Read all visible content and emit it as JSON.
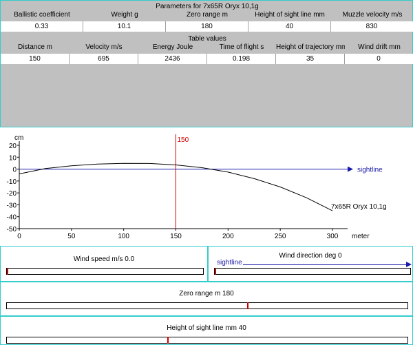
{
  "parameters": {
    "title": "Parameters for 7x65R Oryx 10,1g",
    "headers": [
      "Ballistic coefficient",
      "Weight g",
      "Zero range m",
      "Height of sight line mm",
      "Muzzle velocity m/s"
    ],
    "values": [
      "0.33",
      "10.1",
      "180",
      "40",
      "830"
    ]
  },
  "table": {
    "title": "Table values",
    "headers": [
      "Distance m",
      "Velocity m/s",
      "Energy Joule",
      "Time of flight s",
      "Height of trajectory mm",
      "Wind drift mm"
    ],
    "values": [
      "150",
      "695",
      "2436",
      "0.198",
      "35",
      "0"
    ]
  },
  "chart_data": {
    "type": "line",
    "ylabel": "cm",
    "xlabel": "meter",
    "xlim": [
      0,
      300
    ],
    "ylim": [
      -50,
      20
    ],
    "x_ticks": [
      "0",
      "50",
      "100",
      "150",
      "200",
      "250",
      "300"
    ],
    "y_ticks": [
      "20",
      "10",
      "0",
      "-10",
      "-20",
      "-30",
      "-40",
      "-50"
    ],
    "series": [
      {
        "name": "7x65R Oryx 10,1g",
        "x": [
          0,
          25,
          50,
          75,
          100,
          125,
          150,
          175,
          200,
          225,
          250,
          275,
          300
        ],
        "y": [
          -4,
          0.5,
          2.8,
          4.2,
          4.8,
          4.7,
          3.5,
          1.2,
          -2.5,
          -8,
          -15,
          -24,
          -35
        ]
      }
    ],
    "sightline": {
      "label": "sightline",
      "y": 0
    },
    "marker": {
      "label": "150",
      "x": 150
    },
    "colors": {
      "curve": "#000000",
      "sightline": "#1a1aaa",
      "marker": "#cc0000"
    }
  },
  "wind_speed": {
    "label": "Wind speed m/s 0.0",
    "value": 0,
    "min": 0,
    "max": 30
  },
  "wind_direction": {
    "label": "Wind direction deg 0",
    "sightline_label": "sightline",
    "value": 0
  },
  "zero_range": {
    "label": "Zero range m 180",
    "value": 180,
    "min": 0,
    "max": 300
  },
  "sight_height": {
    "label": "Height of sight line mm 40",
    "value": 40,
    "min": 0,
    "max": 100
  }
}
